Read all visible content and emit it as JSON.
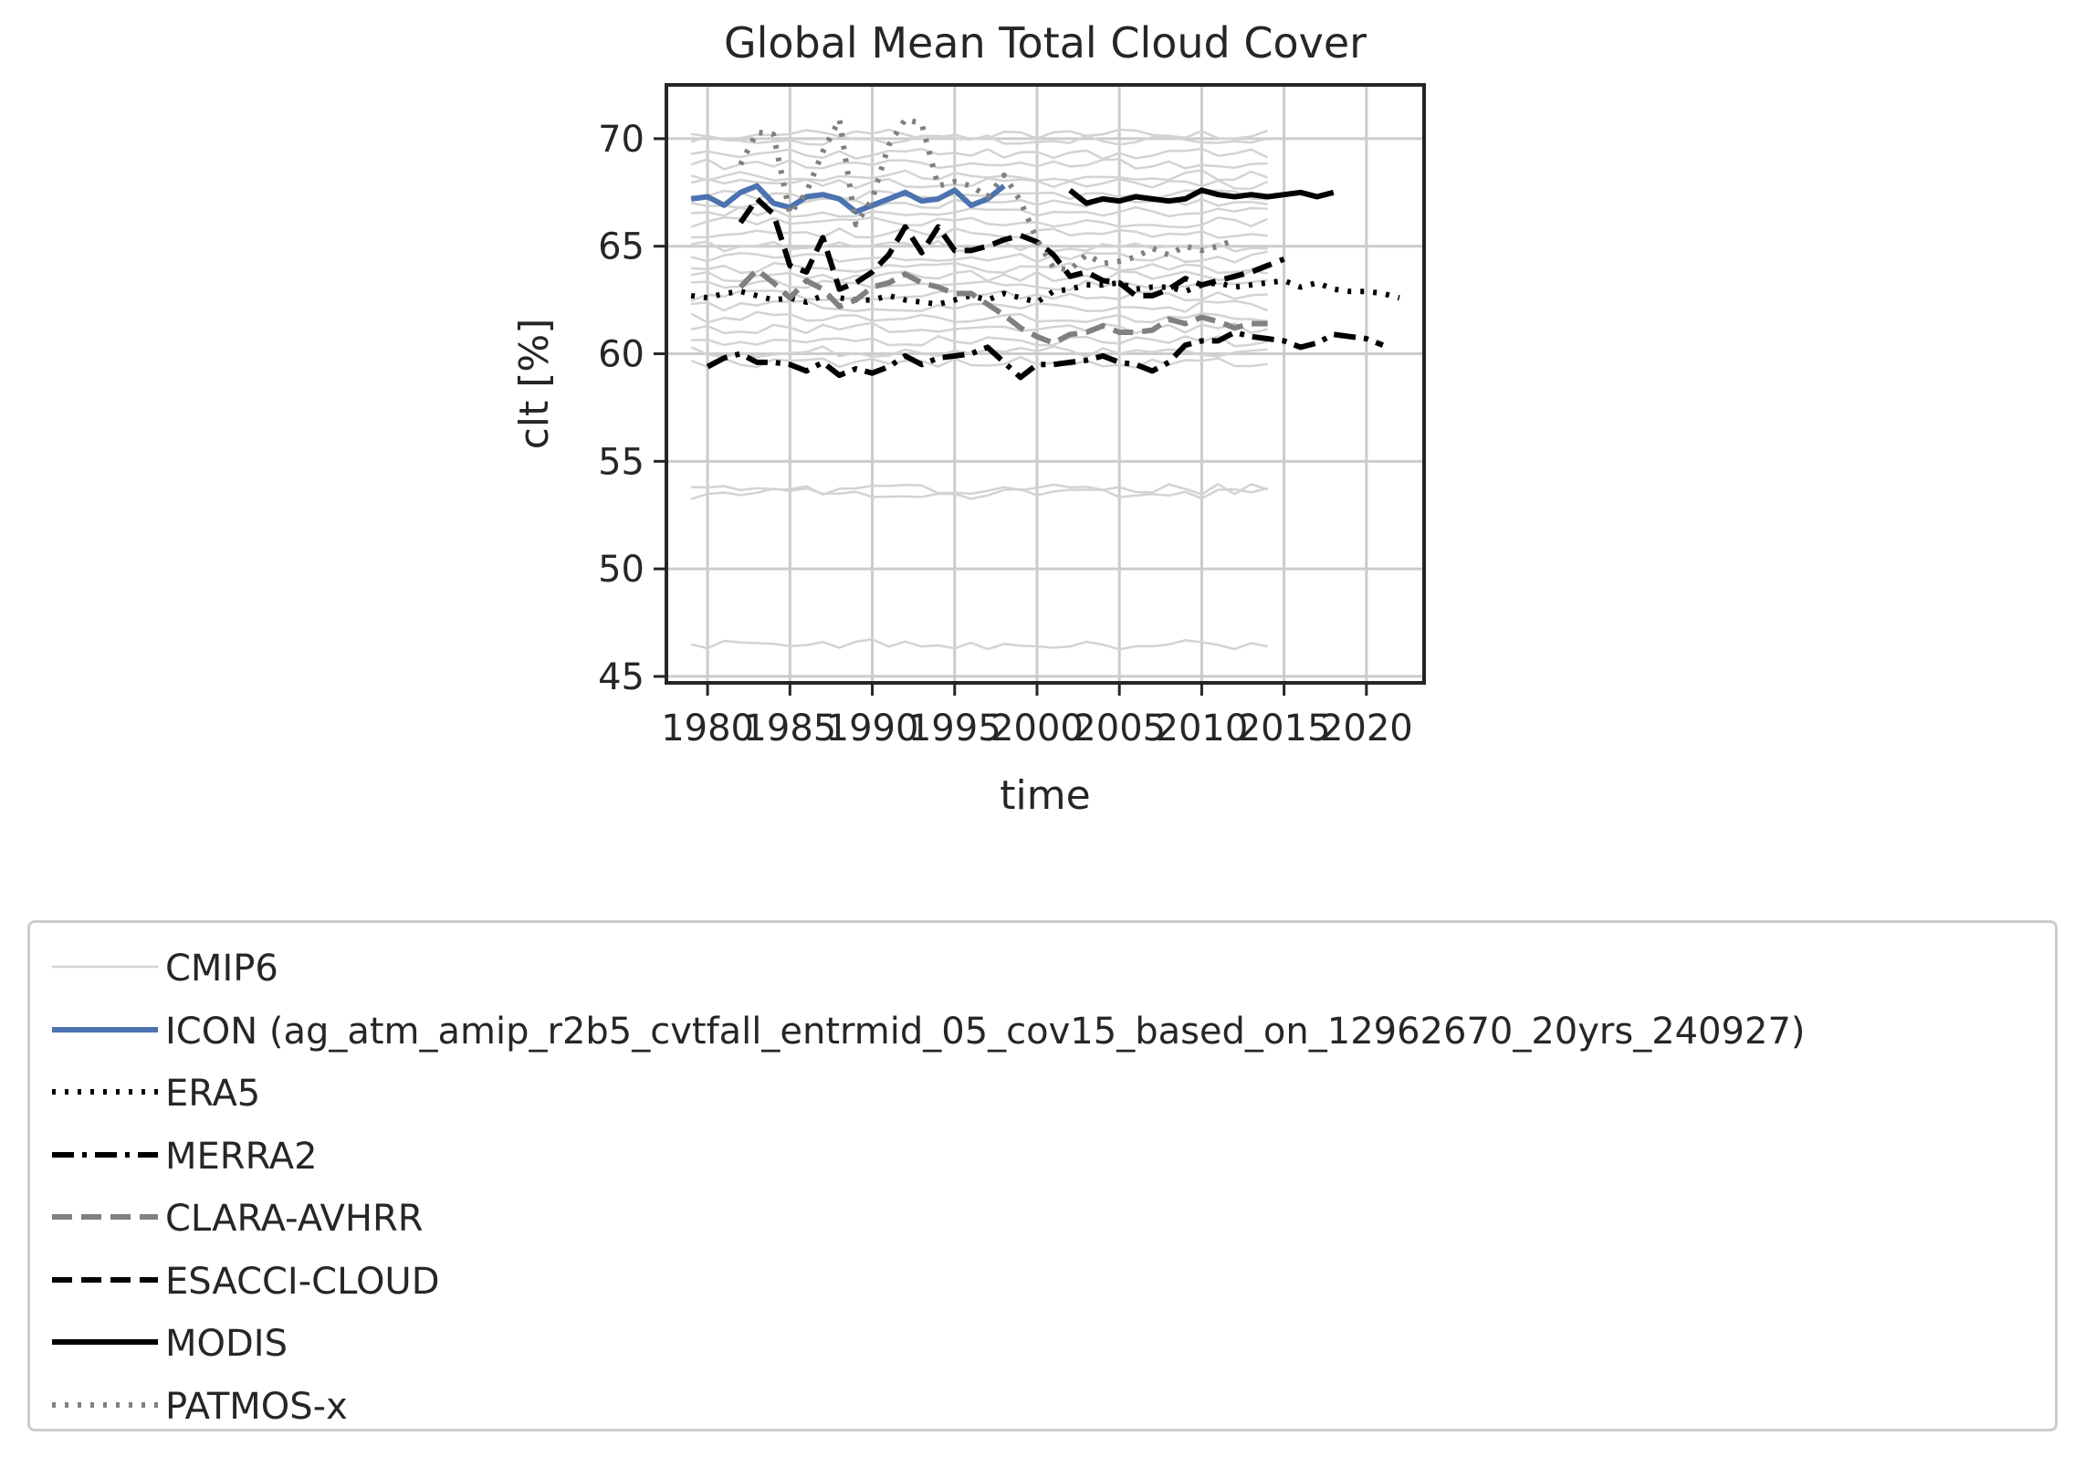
{
  "chart_data": {
    "type": "line",
    "title": "Global Mean Total Cloud Cover",
    "xlabel": "time",
    "ylabel": "clt [%]",
    "xlim": [
      1977.5,
      2023.5
    ],
    "ylim": [
      44.7,
      72.5
    ],
    "xticks": [
      1980,
      1985,
      1990,
      1995,
      2000,
      2005,
      2010,
      2015,
      2020
    ],
    "xtick_labels": [
      "1980",
      "1985",
      "1990",
      "1995",
      "2000",
      "2005",
      "2010",
      "2015",
      "2020"
    ],
    "yticks": [
      45,
      50,
      55,
      60,
      65,
      70
    ],
    "ytick_labels": [
      "45",
      "50",
      "55",
      "60",
      "65",
      "70"
    ],
    "grid": true,
    "legend_placement": "below",
    "cmip6": {
      "name": "CMIP6",
      "color": "#d3d3d3",
      "x_start": 1979,
      "x_end": 2014,
      "baselines": [
        46.5,
        53.5,
        53.7,
        59.6,
        60.1,
        60.6,
        61.2,
        61.7,
        62.2,
        62.7,
        63.2,
        63.6,
        64.0,
        64.5,
        65.0,
        65.6,
        66.1,
        66.6,
        67.0,
        67.4,
        67.9,
        68.3,
        68.8,
        69.3,
        69.9,
        70.2
      ],
      "variability": 0.25
    },
    "series": [
      {
        "name": "ICON (ag_atm_amip_r2b5_cvtfall_entrmid_05_cov15_based_on_12962670_20yrs_240927)",
        "color": "#4c72b0",
        "style": "solid",
        "width": 6,
        "x_start": 1979,
        "values": [
          67.2,
          67.3,
          66.9,
          67.5,
          67.8,
          67.0,
          66.8,
          67.3,
          67.4,
          67.2,
          66.6,
          66.9,
          67.2,
          67.5,
          67.1,
          67.2,
          67.6,
          66.9,
          67.2,
          67.8
        ]
      },
      {
        "name": "ERA5",
        "color": "#000000",
        "style": "dotted",
        "width": 6,
        "x_start": 1979,
        "values": [
          62.7,
          62.6,
          62.8,
          62.9,
          62.7,
          62.5,
          62.6,
          62.4,
          62.7,
          62.6,
          62.5,
          62.5,
          62.7,
          62.5,
          62.4,
          62.3,
          62.5,
          62.7,
          62.5,
          62.8,
          62.6,
          62.4,
          62.9,
          63.0,
          63.2,
          63.2,
          63.3,
          63.0,
          63.1,
          63.1,
          62.9,
          63.2,
          63.3,
          63.1,
          63.2,
          63.3,
          63.4,
          63.1,
          63.3,
          63.0,
          62.9,
          62.9,
          62.8,
          62.6
        ]
      },
      {
        "name": "MERRA2",
        "color": "#000000",
        "style": "dashdot",
        "width": 6,
        "x_start": 1980,
        "values": [
          59.4,
          59.8,
          60.0,
          59.6,
          59.6,
          59.5,
          59.2,
          59.6,
          59.0,
          59.3,
          59.1,
          59.4,
          59.9,
          59.5,
          59.8,
          59.9,
          60.0,
          60.3,
          59.6,
          58.9,
          59.5,
          59.5,
          59.6,
          59.7,
          59.9,
          59.6,
          59.5,
          59.2,
          59.6,
          60.4,
          60.6,
          60.6,
          61.0,
          60.8,
          60.7,
          60.6,
          60.3,
          60.5,
          60.9,
          60.8,
          60.7,
          60.4
        ]
      },
      {
        "name": "CLARA-AVHRR",
        "color": "#808080",
        "style": "dashed",
        "width": 6,
        "x_start": 1982,
        "values": [
          63.1,
          63.9,
          63.3,
          62.6,
          63.4,
          63.0,
          62.2,
          62.5,
          63.1,
          63.3,
          63.7,
          63.3,
          63.1,
          62.8,
          62.8,
          62.3,
          61.8,
          61.2,
          60.8,
          60.5,
          60.9,
          61.0,
          61.3,
          61.0,
          61.0,
          61.1,
          61.6,
          61.4,
          61.7,
          61.5,
          61.2,
          61.4,
          61.4
        ]
      },
      {
        "name": "ESACCI-CLOUD",
        "color": "#000000",
        "style": "dashed",
        "width": 6,
        "x_start": 1982,
        "values": [
          66.1,
          67.2,
          66.5,
          64.1,
          63.8,
          65.4,
          63.0,
          63.3,
          63.8,
          64.6,
          65.9,
          64.7,
          65.9,
          64.8,
          64.8,
          65.0,
          65.3,
          65.5,
          65.2,
          64.6,
          63.6,
          63.8,
          63.4,
          63.3,
          62.7,
          62.7,
          63.0,
          63.5,
          63.2,
          63.4,
          63.6,
          63.8,
          64.1,
          64.4
        ]
      },
      {
        "name": "MODIS",
        "color": "#000000",
        "style": "solid",
        "width": 6,
        "x_start": 2002,
        "values": [
          67.6,
          67.0,
          67.2,
          67.1,
          67.3,
          67.2,
          67.1,
          67.2,
          67.6,
          67.4,
          67.3,
          67.4,
          67.3,
          67.4,
          67.5,
          67.3,
          67.5
        ]
      },
      {
        "name": "PATMOS-x",
        "color": "#808080",
        "style": "dotted",
        "width": 6,
        "x_start": 1982,
        "values": [
          68.8,
          70.3,
          70.2,
          66.5,
          67.5,
          69.4,
          70.9,
          66.0,
          67.2,
          69.7,
          70.9,
          70.7,
          67.8,
          68.0,
          67.8,
          67.3,
          68.3,
          67.1,
          65.3,
          64.0,
          63.9,
          64.6,
          64.2,
          64.3,
          64.5,
          64.9,
          64.6,
          65.0,
          64.8,
          65.0,
          65.3
        ]
      }
    ]
  }
}
